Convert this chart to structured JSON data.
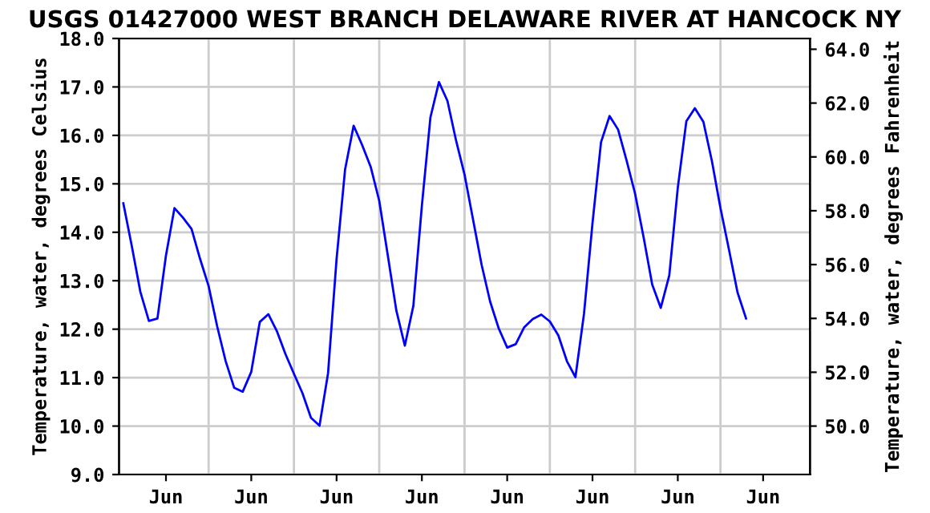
{
  "chart_data": {
    "type": "line",
    "title": "USGS 01427000 WEST BRANCH DELAWARE RIVER AT HANCOCK NY",
    "ylabel": "Temperature, water, degrees Celsius",
    "y2label": "Temperature, water, degrees Fahrenheit",
    "categories": [
      null,
      null,
      null,
      null,
      null,
      "Jun",
      null,
      null,
      null,
      null,
      null,
      null,
      null,
      null,
      null,
      "Jun",
      null,
      null,
      null,
      null,
      null,
      null,
      null,
      null,
      null,
      "Jun",
      null,
      null,
      null,
      null,
      null,
      null,
      null,
      null,
      null,
      "Jun",
      null,
      null,
      null,
      null,
      null,
      null,
      null,
      null,
      null,
      "Jun",
      null,
      null,
      null,
      null,
      null,
      null,
      null,
      null,
      null,
      "Jun",
      null,
      null,
      null,
      null,
      null,
      null,
      null,
      null,
      null,
      "Jun",
      null,
      null,
      null,
      null,
      null,
      null,
      null,
      null,
      null,
      "Jun",
      null,
      null,
      null,
      null,
      null
    ],
    "ylim": [
      9,
      18
    ],
    "yticks": [
      {
        "value": 9,
        "label": "9.0"
      },
      {
        "value": 10,
        "label": "10.0"
      },
      {
        "value": 11,
        "label": "11.0"
      },
      {
        "value": 12,
        "label": "12.0"
      },
      {
        "value": 13,
        "label": "13.0"
      },
      {
        "value": 14,
        "label": "14.0"
      },
      {
        "value": 15,
        "label": "15.0"
      },
      {
        "value": 16,
        "label": "16.0"
      },
      {
        "value": 17,
        "label": "17.0"
      },
      {
        "value": 18,
        "label": "18.0"
      }
    ],
    "y2lim": [
      48.2,
      64.4
    ],
    "y2ticks": [
      {
        "value": 50,
        "label": "50.0"
      },
      {
        "value": 52,
        "label": "52.0"
      },
      {
        "value": 54,
        "label": "54.0"
      },
      {
        "value": 56,
        "label": "56.0"
      },
      {
        "value": 58,
        "label": "58.0"
      },
      {
        "value": 60,
        "label": "60.0"
      },
      {
        "value": 62,
        "label": "62.0"
      },
      {
        "value": 64,
        "label": "64.0"
      }
    ],
    "grid": true,
    "marker": "none",
    "line_style": "solid",
    "series": [
      {
        "color": "#0000ff",
        "values": [
          14.6,
          13.71,
          12.77,
          12.17,
          12.22,
          13.52,
          14.5,
          14.3,
          14.07,
          13.45,
          12.89,
          12.06,
          11.34,
          10.79,
          10.71,
          11.12,
          12.15,
          12.31,
          11.96,
          11.49,
          11.08,
          10.68,
          10.17,
          10.01,
          11.09,
          13.45,
          15.3,
          16.2,
          15.8,
          15.35,
          14.65,
          13.53,
          12.39,
          11.66,
          12.48,
          14.55,
          16.37,
          17.1,
          16.71,
          15.9,
          15.19,
          14.26,
          13.33,
          12.57,
          12.02,
          11.62,
          11.69,
          12.04,
          12.21,
          12.3,
          12.16,
          11.87,
          11.34,
          11.01,
          12.31,
          14.19,
          15.86,
          16.4,
          16.12,
          15.48,
          14.79,
          13.89,
          12.92,
          12.44,
          13.11,
          14.92,
          16.29,
          16.56,
          16.28,
          15.47,
          14.5,
          13.64,
          12.76,
          12.22,
          null,
          null,
          null,
          null,
          null,
          null,
          null
        ]
      }
    ]
  }
}
